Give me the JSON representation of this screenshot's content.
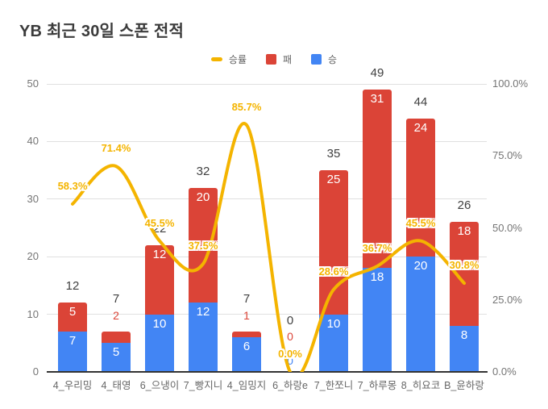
{
  "title": "YB 최근 30일 스폰 전적",
  "legend": {
    "items": [
      {
        "label": "승률",
        "swatch": "line-dash-icon",
        "color": "#F4B400"
      },
      {
        "label": "패",
        "swatch": "square-icon",
        "color": "#DB4437"
      },
      {
        "label": "승",
        "swatch": "square-icon",
        "color": "#4285F4"
      }
    ]
  },
  "colors": {
    "win": "#4285F4",
    "loss": "#DB4437",
    "rate_line": "#F4B400",
    "grid": "#E0E0E0",
    "axis_line": "#333333",
    "tick_text": "#757575",
    "annotation_text": "#404040",
    "bar_label_text": "#FFFFFF",
    "title_text": "#3B3B3B",
    "background": "#FFFFFF"
  },
  "chart_data": {
    "type": "bar",
    "subtype": "stacked-bars-with-rate-line",
    "title": "YB 최근 30일 스폰 전적",
    "categories": [
      "4_우리밍",
      "4_태영",
      "6_으냉이",
      "7_빵지니",
      "4_임밍지",
      "6_하랑e",
      "7_한쪼니",
      "7_하루몽",
      "8_히요코",
      "B_윤하랑"
    ],
    "series": [
      {
        "name": "승",
        "type": "bar",
        "axis": "left",
        "color": "#4285F4",
        "values": [
          7,
          5,
          10,
          12,
          6,
          0,
          10,
          18,
          20,
          8
        ]
      },
      {
        "name": "패",
        "type": "bar",
        "axis": "left",
        "color": "#DB4437",
        "values": [
          5,
          2,
          12,
          20,
          1,
          0,
          25,
          31,
          24,
          18
        ]
      },
      {
        "name": "승률",
        "type": "line",
        "axis": "right",
        "color": "#F4B400",
        "values": [
          58.3,
          71.4,
          45.5,
          37.5,
          85.7,
          0.0,
          28.6,
          36.7,
          45.5,
          30.8
        ],
        "labels": [
          "58.3%",
          "71.4%",
          "45.5%",
          "37.5%",
          "85.7%",
          "0.0%",
          "28.6%",
          "36.7%",
          "45.5%",
          "30.8%"
        ]
      }
    ],
    "totals": [
      12,
      7,
      22,
      32,
      7,
      0,
      35,
      49,
      44,
      26
    ],
    "left_axis": {
      "min": 0,
      "max": 50,
      "ticks": [
        "0",
        "10",
        "20",
        "30",
        "40",
        "50"
      ]
    },
    "right_axis": {
      "min": 0,
      "max": 100,
      "ticks": [
        "0.0%",
        "25.0%",
        "50.0%",
        "75.0%",
        "100.0%"
      ]
    },
    "grid": "horizontal",
    "legend_position": "top-center"
  }
}
